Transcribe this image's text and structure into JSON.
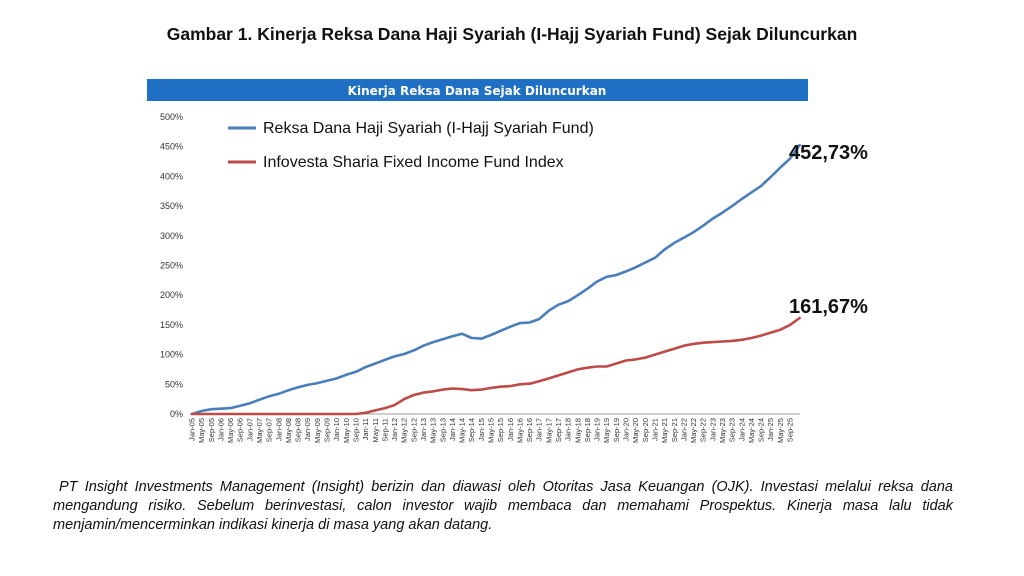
{
  "figure_title": "Gambar 1. Kinerja Reksa Dana Haji Syariah (I-Hajj Syariah Fund) Sejak Diluncurkan",
  "disclaimer": "PT Insight Investments Management (Insight) berizin dan diawasi oleh Otoritas Jasa Keuangan (OJK). Investasi melalui reksa dana mengandung risiko. Sebelum berinvestasi, calon investor wajib membaca dan memahami Prospektus. Kinerja masa lalu tidak menjamin/mencerminkan indikasi kinerja di masa yang akan datang.",
  "colors": {
    "header_bg": "#1f6fc4",
    "series_fund": "#4a7ebb",
    "series_index": "#be4b48"
  },
  "chart_data": {
    "type": "line",
    "title": "Kinerja Reksa Dana Sejak Diluncurkan",
    "y_ticks": [
      "0%",
      "50%",
      "100%",
      "150%",
      "200%",
      "250%",
      "300%",
      "350%",
      "400%",
      "450%",
      "500%"
    ],
    "ylim": [
      0,
      500
    ],
    "x_ticks": [
      "Jan-05",
      "May-05",
      "Sep-05",
      "Jan-06",
      "May-06",
      "Sep-06",
      "Jan-07",
      "May-07",
      "Sep-07",
      "Jan-08",
      "May-08",
      "Sep-08",
      "Jan-09",
      "May-09",
      "Sep-09",
      "Jan-10",
      "May-10",
      "Sep-10",
      "Jan-11",
      "May-11",
      "Sep-11",
      "Jan-12",
      "May-12",
      "Sep-12",
      "Jan-13",
      "May-13",
      "Sep-13",
      "Jan-14",
      "May-14",
      "Sep-14",
      "Jan-15",
      "May-15",
      "Sep-15",
      "Jan-16",
      "May-16",
      "Sep-16",
      "Jan-17",
      "May-17",
      "Sep-17",
      "Jan-18",
      "May-18",
      "Sep-18",
      "Jan-19",
      "May-19",
      "Sep-19",
      "Jan-20",
      "May-20",
      "Sep-20",
      "Jan-21",
      "May-21",
      "Sep-21",
      "Jan-22",
      "May-22",
      "Sep-22",
      "Jan-23",
      "May-23",
      "Sep-23",
      "Jan-24",
      "May-24",
      "Sep-24",
      "Jan-25",
      "May-25",
      "Sep-25"
    ],
    "legend_position": "top-left",
    "series": [
      {
        "name": "Reksa Dana Haji Syariah (I-Hajj Syariah Fund)",
        "end_label": "452,73%",
        "values": [
          0,
          5,
          8,
          9,
          10,
          14,
          18,
          24,
          30,
          34,
          40,
          45,
          49,
          52,
          56,
          60,
          66,
          71,
          79,
          85,
          91,
          97,
          101,
          107,
          115,
          121,
          126,
          131,
          135,
          128,
          127,
          133,
          140,
          147,
          153,
          154,
          160,
          174,
          184,
          190,
          200,
          211,
          223,
          231,
          234,
          240,
          247,
          255,
          263,
          277,
          288,
          297,
          306,
          317,
          329,
          339,
          350,
          362,
          373,
          384,
          399,
          415,
          430,
          452.73
        ]
      },
      {
        "name": "Infovesta Sharia Fixed Income Fund Index",
        "end_label": "161,67%",
        "values": [
          0,
          0,
          0,
          0,
          0,
          0,
          0,
          0,
          0,
          0,
          0,
          0,
          0,
          0,
          0,
          0,
          0,
          0,
          2,
          6,
          10,
          15,
          25,
          32,
          36,
          38,
          41,
          43,
          42,
          40,
          41,
          44,
          46,
          47,
          50,
          51,
          55,
          60,
          65,
          70,
          75,
          78,
          80,
          80,
          85,
          90,
          92,
          95,
          100,
          105,
          110,
          115,
          118,
          120,
          121,
          122,
          123,
          125,
          128,
          132,
          137,
          142,
          150,
          161.67
        ]
      }
    ]
  }
}
